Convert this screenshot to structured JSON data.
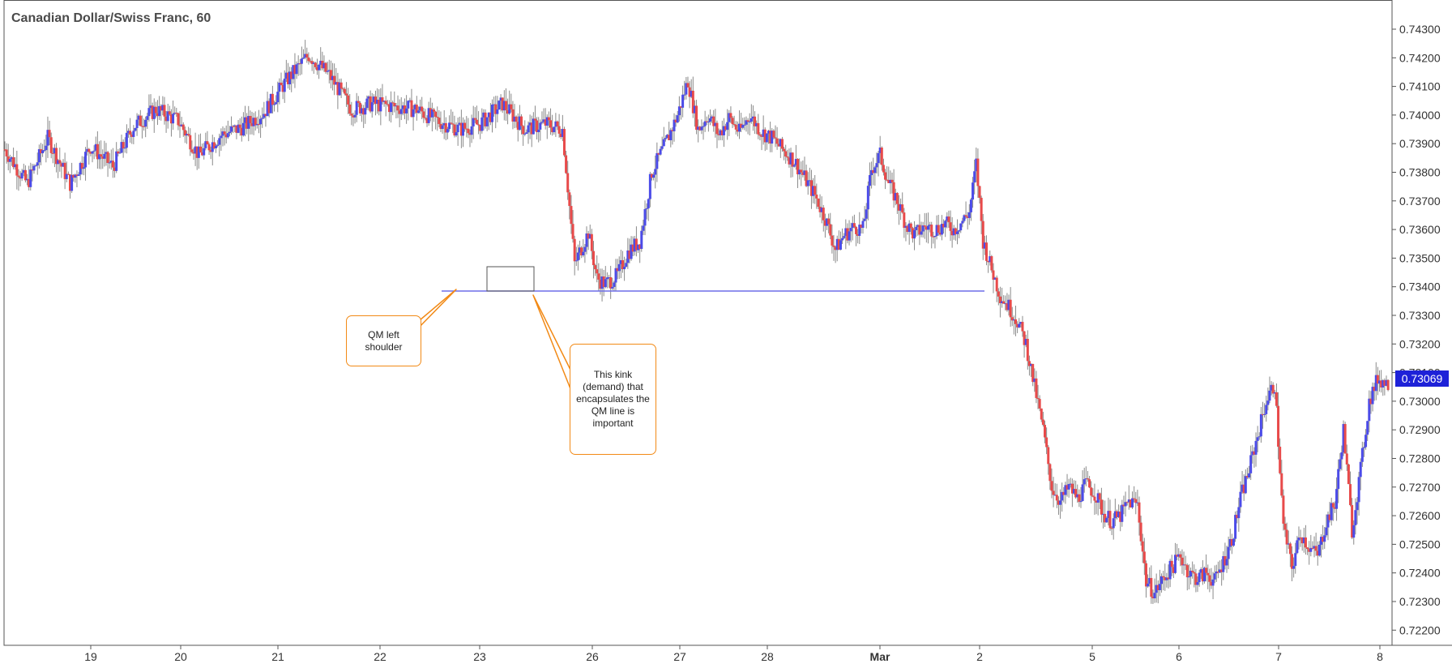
{
  "chart_data": {
    "type": "candlestick",
    "title": "Canadian Dollar/Swiss Franc, 60",
    "ylim": [
      0.7215,
      0.7433
    ],
    "y_ticks": [
      "0.74300",
      "0.74200",
      "0.74100",
      "0.74000",
      "0.73900",
      "0.73800",
      "0.73700",
      "0.73600",
      "0.73500",
      "0.73400",
      "0.73300",
      "0.73200",
      "0.73100",
      "0.73000",
      "0.72900",
      "0.72800",
      "0.72700",
      "0.72600",
      "0.72500",
      "0.72400",
      "0.72300",
      "0.72200"
    ],
    "x_ticks": [
      "19",
      "20",
      "21",
      "22",
      "23",
      "26",
      "27",
      "28",
      "Mar",
      "2",
      "5",
      "6",
      "7",
      "8"
    ],
    "current_price": "0.73069",
    "qm_line_level": 0.73385,
    "colors": {
      "up": "#4b4be8",
      "down": "#e84a4a",
      "qm_line": "#6f6fe8",
      "callout_border": "#f28a16",
      "price_tag": "#1e22d8"
    },
    "path_points": [
      [
        0,
        0.7388
      ],
      [
        13,
        0.7376
      ],
      [
        25,
        0.7392
      ],
      [
        38,
        0.7376
      ],
      [
        50,
        0.7389
      ],
      [
        63,
        0.7382
      ],
      [
        75,
        0.7396
      ],
      [
        88,
        0.7402
      ],
      [
        101,
        0.7398
      ],
      [
        113,
        0.7386
      ],
      [
        126,
        0.7393
      ],
      [
        139,
        0.7396
      ],
      [
        151,
        0.7401
      ],
      [
        164,
        0.7412
      ],
      [
        177,
        0.7421
      ],
      [
        189,
        0.7414
      ],
      [
        202,
        0.7402
      ],
      [
        214,
        0.7404
      ],
      [
        227,
        0.7403
      ],
      [
        240,
        0.7402
      ],
      [
        252,
        0.7398
      ],
      [
        265,
        0.7395
      ],
      [
        277,
        0.7397
      ],
      [
        290,
        0.7404
      ],
      [
        303,
        0.7395
      ],
      [
        315,
        0.7397
      ],
      [
        325,
        0.7395
      ],
      [
        332,
        0.7348
      ],
      [
        340,
        0.7359
      ],
      [
        345,
        0.7343
      ],
      [
        350,
        0.7341
      ],
      [
        357,
        0.7344
      ],
      [
        363,
        0.7352
      ],
      [
        370,
        0.7356
      ],
      [
        377,
        0.738
      ],
      [
        385,
        0.739
      ],
      [
        392,
        0.74
      ],
      [
        398,
        0.7412
      ],
      [
        404,
        0.7395
      ],
      [
        410,
        0.74
      ],
      [
        416,
        0.7393
      ],
      [
        422,
        0.7399
      ],
      [
        428,
        0.7394
      ],
      [
        434,
        0.74
      ],
      [
        441,
        0.7394
      ],
      [
        447,
        0.7392
      ],
      [
        453,
        0.7388
      ],
      [
        460,
        0.7384
      ],
      [
        466,
        0.7378
      ],
      [
        472,
        0.7372
      ],
      [
        478,
        0.7364
      ],
      [
        484,
        0.7353
      ],
      [
        489,
        0.7358
      ],
      [
        495,
        0.7361
      ],
      [
        500,
        0.736
      ],
      [
        505,
        0.7381
      ],
      [
        510,
        0.7386
      ],
      [
        515,
        0.7376
      ],
      [
        520,
        0.737
      ],
      [
        525,
        0.7362
      ],
      [
        530,
        0.7358
      ],
      [
        536,
        0.7361
      ],
      [
        542,
        0.736
      ],
      [
        548,
        0.7362
      ],
      [
        553,
        0.736
      ],
      [
        558,
        0.7363
      ],
      [
        562,
        0.7366
      ],
      [
        566,
        0.7383
      ],
      [
        570,
        0.7356
      ],
      [
        575,
        0.7346
      ],
      [
        580,
        0.7337
      ],
      [
        585,
        0.7333
      ],
      [
        590,
        0.7328
      ],
      [
        595,
        0.732
      ],
      [
        600,
        0.7305
      ],
      [
        605,
        0.729
      ],
      [
        610,
        0.727
      ],
      [
        615,
        0.7265
      ],
      [
        620,
        0.727
      ],
      [
        625,
        0.7266
      ],
      [
        630,
        0.7271
      ],
      [
        635,
        0.7268
      ],
      [
        640,
        0.7261
      ],
      [
        645,
        0.7258
      ],
      [
        650,
        0.726
      ],
      [
        655,
        0.7265
      ],
      [
        660,
        0.7264
      ],
      [
        665,
        0.7237
      ],
      [
        670,
        0.7233
      ],
      [
        675,
        0.7238
      ],
      [
        680,
        0.7242
      ],
      [
        685,
        0.7246
      ],
      [
        690,
        0.724
      ],
      [
        695,
        0.7238
      ],
      [
        700,
        0.724
      ],
      [
        705,
        0.7237
      ],
      [
        710,
        0.7244
      ],
      [
        715,
        0.7252
      ],
      [
        720,
        0.7266
      ],
      [
        725,
        0.7276
      ],
      [
        730,
        0.7288
      ],
      [
        735,
        0.73
      ],
      [
        740,
        0.7306
      ],
      [
        745,
        0.7256
      ],
      [
        750,
        0.7242
      ],
      [
        755,
        0.7254
      ],
      [
        760,
        0.7249
      ],
      [
        765,
        0.7246
      ],
      [
        770,
        0.7258
      ],
      [
        775,
        0.7264
      ],
      [
        780,
        0.729
      ],
      [
        785,
        0.7255
      ],
      [
        790,
        0.7276
      ],
      [
        795,
        0.73
      ],
      [
        800,
        0.7308
      ],
      [
        806,
        0.7306
      ]
    ],
    "annotations": [
      {
        "id": "qm-left-shoulder",
        "text": "QM left shoulder"
      },
      {
        "id": "kink-demand",
        "text": "This kink (demand) that encapsulates the QM line is important"
      }
    ]
  }
}
